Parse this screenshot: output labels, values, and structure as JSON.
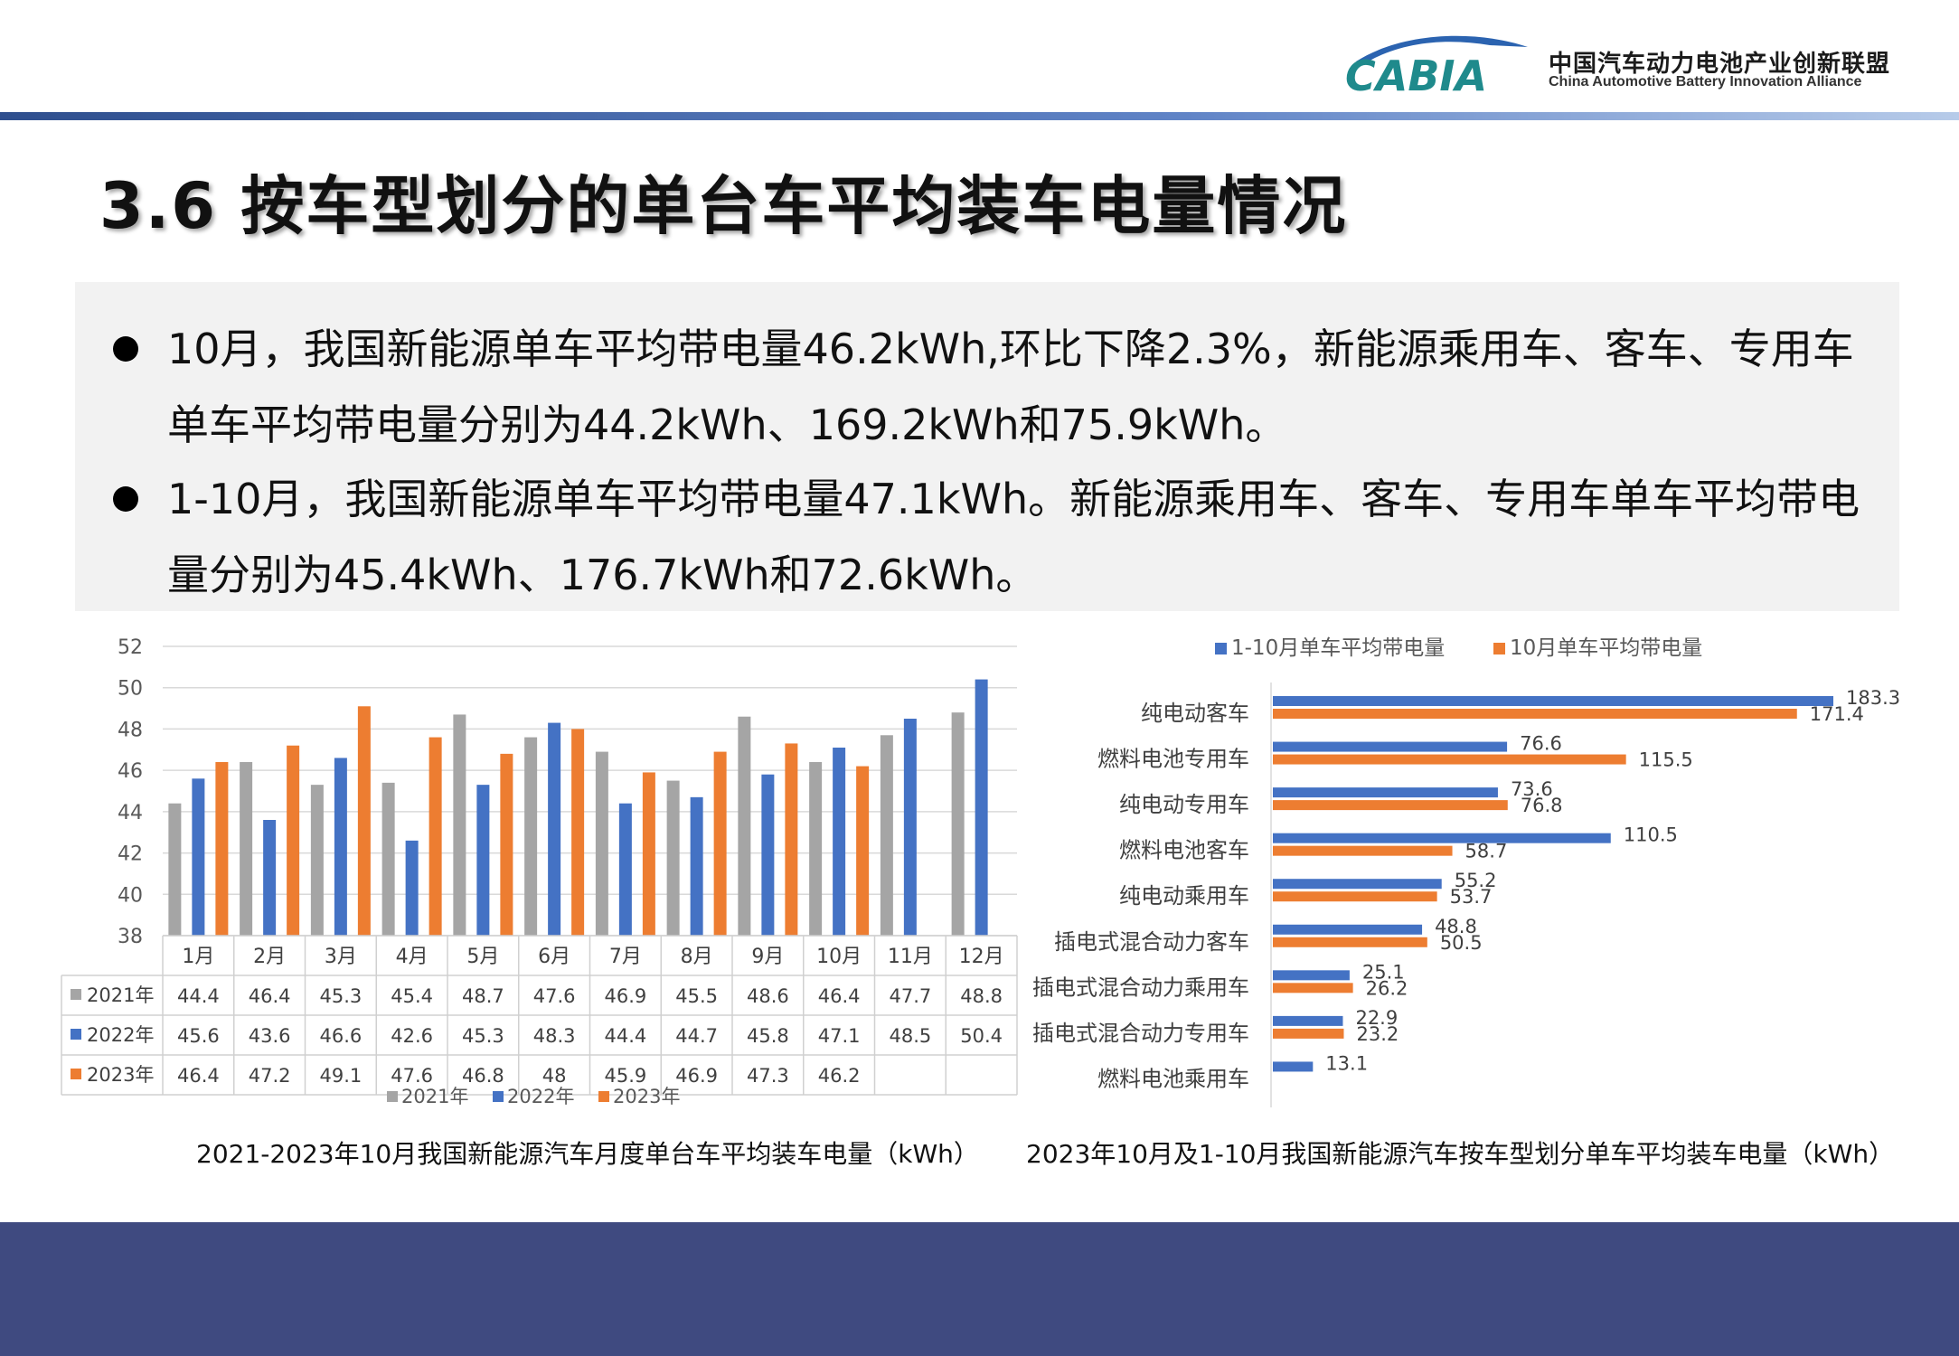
{
  "header": {
    "logo_text": "CABIA",
    "org_cn": "中国汽车动力电池产业创新联盟",
    "org_en": "China Automotive Battery Innovation Alliance"
  },
  "title": "3.6 按车型划分的单台车平均装车电量情况",
  "bullets": [
    "10月，我国新能源单车平均带电量46.2kWh,环比下降2.3%，新能源乘用车、客车、专用车单车平均带电量分别为44.2kWh、169.2kWh和75.9kWh。",
    "1-10月，我国新能源单车平均带电量47.1kWh。新能源乘用车、客车、专用车单车平均带电量分别为45.4kWh、176.7kWh和72.6kWh。"
  ],
  "colors": {
    "gray": "#a5a5a5",
    "blue": "#4472c4",
    "orange": "#ed7d31",
    "footer": "#3f4a80"
  },
  "chart_data": [
    {
      "type": "bar",
      "title": "2021-2023年10月我国新能源汽车月度单台车平均装车电量（kWh）",
      "categories": [
        "1月",
        "2月",
        "3月",
        "4月",
        "5月",
        "6月",
        "7月",
        "8月",
        "9月",
        "10月",
        "11月",
        "12月"
      ],
      "series": [
        {
          "name": "2021年",
          "values": [
            44.4,
            46.4,
            45.3,
            45.4,
            48.7,
            47.6,
            46.9,
            45.5,
            48.6,
            46.4,
            47.7,
            48.8
          ]
        },
        {
          "name": "2022年",
          "values": [
            45.6,
            43.6,
            46.6,
            42.6,
            45.3,
            48.3,
            44.4,
            44.7,
            45.8,
            47.1,
            48.5,
            50.4
          ]
        },
        {
          "name": "2023年",
          "values": [
            46.4,
            47.2,
            49.1,
            47.6,
            46.8,
            48,
            45.9,
            46.9,
            47.3,
            46.2,
            null,
            null
          ]
        }
      ],
      "table_values": [
        [
          "44.4",
          "46.4",
          "45.3",
          "45.4",
          "48.7",
          "47.6",
          "46.9",
          "45.5",
          "48.6",
          "46.4",
          "47.7",
          "48.8"
        ],
        [
          "45.6",
          "43.6",
          "46.6",
          "42.6",
          "45.3",
          "48.3",
          "44.4",
          "44.7",
          "45.8",
          "47.1",
          "48.5",
          "50.4"
        ],
        [
          "46.4",
          "47.2",
          "49.1",
          "47.6",
          "46.8",
          "48",
          "45.9",
          "46.9",
          "47.3",
          "46.2",
          "",
          ""
        ]
      ],
      "ylim": [
        38,
        52
      ],
      "yticks": [
        "38",
        "40",
        "42",
        "44",
        "46",
        "48",
        "50",
        "52"
      ],
      "legend_position": "bottom",
      "grid": true
    },
    {
      "type": "bar",
      "orientation": "horizontal",
      "title": "2023年10月及1-10月我国新能源汽车按车型划分单车平均装车电量（kWh）",
      "categories": [
        "纯电动客车",
        "燃料电池专用车",
        "纯电动专用车",
        "燃料电池客车",
        "纯电动乘用车",
        "插电式混合动力客车",
        "插电式混合动力乘用车",
        "插电式混合动力专用车",
        "燃料电池乘用车"
      ],
      "series": [
        {
          "name": "1-10月单车平均带电量",
          "values": [
            183.3,
            76.6,
            73.6,
            110.5,
            55.2,
            48.8,
            25.1,
            22.9,
            13.1
          ]
        },
        {
          "name": "10月单车平均带电量",
          "values": [
            171.4,
            115.5,
            76.8,
            58.7,
            53.7,
            50.5,
            26.2,
            23.2,
            null
          ]
        }
      ],
      "labels": [
        [
          "183.3",
          "76.6",
          "73.6",
          "110.5",
          "55.2",
          "48.8",
          "25.1",
          "22.9",
          "13.1"
        ],
        [
          "171.4",
          "115.5",
          "76.8",
          "58.7",
          "53.7",
          "50.5",
          "26.2",
          "23.2",
          ""
        ]
      ],
      "legend_position": "top"
    }
  ]
}
